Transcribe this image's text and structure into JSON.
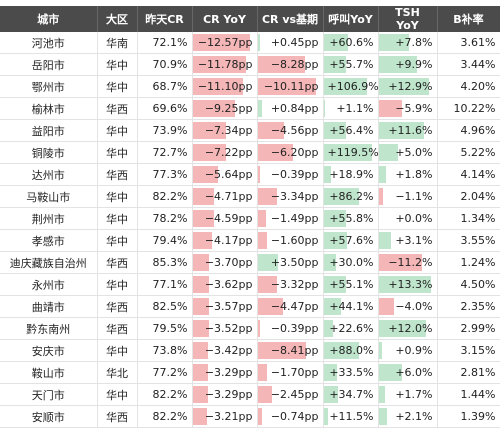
{
  "table": {
    "header": [
      "城市",
      "大区",
      "昨天CR",
      "CR YoY",
      "CR vs基期",
      "呼叫YoY",
      "TSH YoY",
      "B补率"
    ],
    "rows": [
      [
        "河池市",
        "华南",
        "72.1%",
        "−12.57pp",
        "+0.45pp",
        "+60.6%",
        "+7.8%",
        "3.61%"
      ],
      [
        "岳阳市",
        "华中",
        "70.9%",
        "−11.78pp",
        "−8.28pp",
        "+55.7%",
        "+9.9%",
        "3.44%"
      ],
      [
        "鄂州市",
        "华中",
        "68.7%",
        "−11.10pp",
        "−10.11pp",
        "+106.9%",
        "+12.9%",
        "4.20%"
      ],
      [
        "榆林市",
        "华西",
        "69.6%",
        "−9.25pp",
        "+0.84pp",
        "+1.1%",
        "−5.9%",
        "10.22%"
      ],
      [
        "益阳市",
        "华中",
        "73.9%",
        "−7.34pp",
        "−4.56pp",
        "+56.4%",
        "+11.6%",
        "4.96%"
      ],
      [
        "铜陵市",
        "华中",
        "72.7%",
        "−7.22pp",
        "−6.20pp",
        "+119.5%",
        "+5.0%",
        "5.22%"
      ],
      [
        "达州市",
        "华西",
        "77.3%",
        "−5.64pp",
        "−0.39pp",
        "+18.9%",
        "+1.8%",
        "4.14%"
      ],
      [
        "马鞍山市",
        "华中",
        "82.2%",
        "−4.71pp",
        "−3.34pp",
        "+86.2%",
        "−1.1%",
        "2.04%"
      ],
      [
        "荆州市",
        "华中",
        "78.2%",
        "−4.59pp",
        "−1.49pp",
        "+55.8%",
        "+0.0%",
        "1.34%"
      ],
      [
        "孝感市",
        "华中",
        "79.4%",
        "−4.17pp",
        "−1.60pp",
        "+57.6%",
        "+3.1%",
        "3.55%"
      ],
      [
        "迪庆藏族自治州",
        "华西",
        "85.3%",
        "−3.70pp",
        "+3.50pp",
        "+30.0%",
        "−11.2%",
        "1.24%"
      ],
      [
        "永州市",
        "华中",
        "77.1%",
        "−3.62pp",
        "−3.32pp",
        "+55.1%",
        "+13.3%",
        "4.50%"
      ],
      [
        "曲靖市",
        "华西",
        "82.5%",
        "−3.57pp",
        "−4.47pp",
        "+44.1%",
        "−4.0%",
        "2.35%"
      ],
      [
        "黔东南州",
        "华西",
        "79.5%",
        "−3.52pp",
        "−0.39pp",
        "+22.6%",
        "+12.0%",
        "2.99%"
      ],
      [
        "安庆市",
        "华中",
        "73.8%",
        "−3.42pp",
        "−8.41pp",
        "+88.0%",
        "+0.9%",
        "3.15%"
      ],
      [
        "鞍山市",
        "华北",
        "77.2%",
        "−3.29pp",
        "−1.70pp",
        "+33.5%",
        "+6.0%",
        "2.81%"
      ],
      [
        "天门市",
        "华中",
        "82.2%",
        "−3.29pp",
        "−2.45pp",
        "+34.7%",
        "+1.7%",
        "1.44%"
      ],
      [
        "安顺市",
        "华西",
        "82.2%",
        "−3.21pp",
        "−0.74pp",
        "+11.5%",
        "+2.1%",
        "1.39%"
      ]
    ]
  }
}
